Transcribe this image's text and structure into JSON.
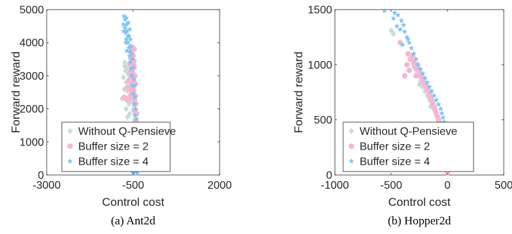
{
  "panels": [
    {
      "caption": "(a) Ant2d",
      "chart_data": {
        "type": "scatter",
        "xlabel": "Control cost",
        "ylabel": "Forward reward",
        "xlim": [
          -3000,
          2000
        ],
        "ylim": [
          0,
          5000
        ],
        "xticks": [
          -3000,
          -500,
          2000
        ],
        "yticks": [
          0,
          1000,
          2000,
          3000,
          4000,
          5000
        ],
        "xtick_labels": [
          "-3000",
          "-500",
          "2000"
        ],
        "ytick_labels": [
          "0",
          "1000",
          "2000",
          "3000",
          "4000",
          "5000"
        ],
        "legend_position": "bottom-left",
        "series": [
          {
            "name": "Without Q-Pensieve",
            "marker": "diamond",
            "color": "#c5dcd8",
            "points": [
              [
                -750,
                3300
              ],
              [
                -720,
                3150
              ],
              [
                -780,
                2950
              ],
              [
                -700,
                2800
              ],
              [
                -760,
                2600
              ],
              [
                -820,
                2300
              ],
              [
                -650,
                3050
              ],
              [
                -680,
                2550
              ],
              [
                -600,
                2700
              ],
              [
                -640,
                2300
              ],
              [
                -580,
                2950
              ],
              [
                -560,
                2500
              ],
              [
                -620,
                2150
              ],
              [
                -700,
                2000
              ],
              [
                -540,
                2250
              ],
              [
                -520,
                2800
              ],
              [
                -500,
                1950
              ],
              [
                -480,
                2100
              ],
              [
                -600,
                1850
              ],
              [
                -660,
                1750
              ],
              [
                -460,
                1650
              ],
              [
                -440,
                1850
              ],
              [
                -520,
                1500
              ],
              [
                -480,
                1300
              ],
              [
                -430,
                1200
              ],
              [
                -450,
                1050
              ],
              [
                -420,
                900
              ],
              [
                -440,
                600
              ],
              [
                -460,
                350
              ],
              [
                -700,
                3250
              ],
              [
                -650,
                2850
              ],
              [
                -570,
                2650
              ],
              [
                -740,
                3400
              ],
              [
                -610,
                3200
              ]
            ]
          },
          {
            "name": "Buffer size = 2",
            "marker": "circle",
            "color": "#f7b6d2",
            "points": [
              [
                -520,
                3850
              ],
              [
                -540,
                3700
              ],
              [
                -500,
                3600
              ],
              [
                -560,
                3500
              ],
              [
                -480,
                3450
              ],
              [
                -600,
                3350
              ],
              [
                -520,
                3300
              ],
              [
                -470,
                3250
              ],
              [
                -580,
                3100
              ],
              [
                -500,
                3050
              ],
              [
                -450,
                3000
              ],
              [
                -540,
                2950
              ],
              [
                -490,
                2900
              ],
              [
                -620,
                2850
              ],
              [
                -470,
                2800
              ],
              [
                -560,
                2700
              ],
              [
                -430,
                2750
              ],
              [
                -510,
                2650
              ],
              [
                -600,
                2600
              ],
              [
                -480,
                2550
              ],
              [
                -540,
                2450
              ],
              [
                -440,
                2400
              ],
              [
                -500,
                2300
              ],
              [
                -460,
                2250
              ],
              [
                -420,
                2150
              ],
              [
                -440,
                1950
              ],
              [
                -400,
                1850
              ],
              [
                -420,
                1650
              ],
              [
                -560,
                3700
              ],
              [
                -580,
                2400
              ],
              [
                -530,
                3150
              ],
              [
                -660,
                2650
              ],
              [
                -760,
                2350
              ],
              [
                -700,
                2300
              ],
              [
                -640,
                2250
              ],
              [
                -470,
                3800
              ],
              [
                -490,
                3350
              ],
              [
                -510,
                2800
              ]
            ]
          },
          {
            "name": "Buffer size = 4",
            "marker": "star",
            "color": "#7ec4ee",
            "points": [
              [
                -760,
                4800
              ],
              [
                -730,
                4700
              ],
              [
                -700,
                4750
              ],
              [
                -780,
                4550
              ],
              [
                -740,
                4450
              ],
              [
                -690,
                4550
              ],
              [
                -640,
                4600
              ],
              [
                -770,
                4350
              ],
              [
                -720,
                4300
              ],
              [
                -680,
                4350
              ],
              [
                -620,
                4200
              ],
              [
                -600,
                4400
              ],
              [
                -700,
                4100
              ],
              [
                -650,
                4000
              ],
              [
                -580,
                4100
              ],
              [
                -620,
                3850
              ],
              [
                -560,
                3900
              ],
              [
                -680,
                3750
              ],
              [
                -600,
                3600
              ],
              [
                -540,
                3650
              ],
              [
                -580,
                3400
              ],
              [
                -520,
                3500
              ],
              [
                -560,
                3200
              ],
              [
                -500,
                3250
              ],
              [
                -540,
                3000
              ],
              [
                -480,
                2900
              ],
              [
                -520,
                2700
              ],
              [
                -460,
                2700
              ],
              [
                -500,
                2450
              ],
              [
                -440,
                2350
              ],
              [
                -470,
                2150
              ],
              [
                -430,
                2000
              ],
              [
                -450,
                1800
              ],
              [
                -410,
                1700
              ],
              [
                -430,
                1500
              ],
              [
                -400,
                1300
              ],
              [
                -420,
                1100
              ],
              [
                -390,
                900
              ],
              [
                -410,
                700
              ],
              [
                -380,
                500
              ],
              [
                -400,
                300
              ],
              [
                -420,
                100
              ],
              [
                -380,
                50
              ],
              [
                -480,
                50
              ],
              [
                -520,
                100
              ],
              [
                -650,
                4200
              ],
              [
                -710,
                4000
              ],
              [
                -590,
                3750
              ]
            ]
          }
        ]
      }
    },
    {
      "caption": "(b) Hopper2d",
      "chart_data": {
        "type": "scatter",
        "xlabel": "Control cost",
        "ylabel": "Forward reward",
        "xlim": [
          -1000,
          500
        ],
        "ylim": [
          0,
          1500
        ],
        "xticks": [
          -1000,
          -500,
          0,
          500
        ],
        "yticks": [
          0,
          500,
          1000,
          1500
        ],
        "xtick_labels": [
          "-1000",
          "-500",
          "0",
          "500"
        ],
        "ytick_labels": [
          "0",
          "500",
          "1000",
          "1500"
        ],
        "legend_position": "bottom-left",
        "series": [
          {
            "name": "Without Q-Pensieve",
            "marker": "diamond",
            "color": "#c5dcd8",
            "points": [
              [
                -500,
                1310
              ],
              [
                -480,
                1280
              ],
              [
                -300,
                1000
              ],
              [
                -280,
                950
              ],
              [
                -260,
                900
              ],
              [
                -240,
                850
              ],
              [
                -220,
                800
              ],
              [
                -200,
                760
              ],
              [
                -180,
                720
              ],
              [
                -160,
                680
              ],
              [
                -140,
                640
              ],
              [
                -120,
                600
              ],
              [
                -100,
                560
              ],
              [
                -90,
                520
              ],
              [
                -80,
                480
              ],
              [
                -70,
                440
              ],
              [
                -60,
                400
              ],
              [
                -50,
                350
              ],
              [
                -40,
                300
              ],
              [
                -30,
                250
              ],
              [
                -20,
                200
              ],
              [
                -320,
                1050
              ],
              [
                -250,
                820
              ],
              [
                -150,
                620
              ]
            ]
          },
          {
            "name": "Buffer size = 2",
            "marker": "circle",
            "color": "#f7b6d2",
            "points": [
              [
                -420,
                1200
              ],
              [
                -350,
                1100
              ],
              [
                -330,
                1050
              ],
              [
                -310,
                1080
              ],
              [
                -300,
                1020
              ],
              [
                -290,
                980
              ],
              [
                -270,
                1000
              ],
              [
                -260,
                960
              ],
              [
                -250,
                940
              ],
              [
                -240,
                900
              ],
              [
                -230,
                880
              ],
              [
                -220,
                860
              ],
              [
                -210,
                840
              ],
              [
                -200,
                820
              ],
              [
                -190,
                800
              ],
              [
                -180,
                780
              ],
              [
                -170,
                760
              ],
              [
                -160,
                740
              ],
              [
                -150,
                700
              ],
              [
                -140,
                680
              ],
              [
                -130,
                650
              ],
              [
                -120,
                620
              ],
              [
                -110,
                590
              ],
              [
                -100,
                560
              ],
              [
                -90,
                530
              ],
              [
                -80,
                500
              ],
              [
                -70,
                470
              ],
              [
                -60,
                440
              ],
              [
                -50,
                400
              ],
              [
                -40,
                360
              ],
              [
                -30,
                320
              ],
              [
                -20,
                280
              ],
              [
                -10,
                240
              ],
              [
                0,
                20
              ],
              [
                -340,
                950
              ],
              [
                -280,
                900
              ],
              [
                -360,
                1000
              ],
              [
                -380,
                900
              ]
            ]
          },
          {
            "name": "Buffer size = 4",
            "marker": "star",
            "color": "#7ec4ee",
            "points": [
              [
                -560,
                1490
              ],
              [
                -470,
                1470
              ],
              [
                -440,
                1450
              ],
              [
                -410,
                1400
              ],
              [
                -390,
                1360
              ],
              [
                -450,
                1350
              ],
              [
                -420,
                1320
              ],
              [
                -380,
                1300
              ],
              [
                -360,
                1250
              ],
              [
                -340,
                1200
              ],
              [
                -400,
                1180
              ],
              [
                -320,
                1150
              ],
              [
                -300,
                1100
              ],
              [
                -280,
                1050
              ],
              [
                -260,
                1000
              ],
              [
                -240,
                960
              ],
              [
                -220,
                920
              ],
              [
                -200,
                880
              ],
              [
                -180,
                840
              ],
              [
                -160,
                800
              ],
              [
                -140,
                760
              ],
              [
                -120,
                720
              ],
              [
                -100,
                680
              ],
              [
                -80,
                640
              ],
              [
                -60,
                600
              ],
              [
                -50,
                560
              ],
              [
                -40,
                520
              ],
              [
                -30,
                480
              ],
              [
                -20,
                440
              ],
              [
                -10,
                400
              ],
              [
                0,
                360
              ],
              [
                -15,
                320
              ],
              [
                -5,
                280
              ],
              [
                10,
                240
              ],
              [
                -25,
                200
              ],
              [
                -10,
                160
              ],
              [
                5,
                120
              ],
              [
                -20,
                80
              ],
              [
                -480,
                1420
              ],
              [
                -350,
                1230
              ]
            ]
          }
        ]
      }
    }
  ]
}
